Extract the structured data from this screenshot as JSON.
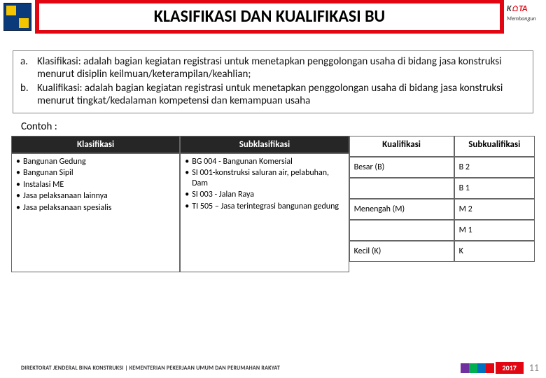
{
  "header": {
    "title": "KLASIFIKASI DAN KUALIFIKASI BU",
    "logo_right_top": "K",
    "logo_right_top2": "TA",
    "logo_right_sub": "Membangun"
  },
  "defs": {
    "a_label": "a.",
    "a_text": "Klasifikasi: adalah bagian kegiatan registrasi untuk menetapkan penggolongan usaha di bidang jasa konstruksi menurut disiplin keilmuan/keterampilan/keahlian;",
    "b_label": "b.",
    "b_text": "Kualifikasi: adalah bagian kegiatan registrasi untuk menetapkan penggolongan usaha di bidang jasa konstruksi menurut tingkat/kedalaman kompetensi dan kemampuan usaha"
  },
  "contoh_label": "Contoh :",
  "columns": {
    "klasifikasi_header": "Klasifikasi",
    "subklasifikasi_header": "Subklasifikasi",
    "kualifikasi_header": "Kualifikasi",
    "subkualifikasi_header": "Subkualifikasi"
  },
  "klasifikasi_items": [
    "Bangunan Gedung",
    "Bangunan Sipil",
    "Instalasi ME",
    "Jasa pelaksanaan lainnya",
    "Jasa pelaksanaan spesialis"
  ],
  "subklasifikasi_items": [
    "BG 004 - Bangunan Komersial",
    "SI 001-konstruksi saluran air, pelabuhan, Dam",
    "SI 003 - Jalan Raya",
    "TI 505 – Jasa terintegrasi bangunan gedung"
  ],
  "kualifikasi_rows": [
    {
      "k": "Besar (B)",
      "s": "B 2"
    },
    {
      "k": "",
      "s": "B 1"
    },
    {
      "k": "Menengah (M)",
      "s": "M 2"
    },
    {
      "k": "",
      "s": "M 1"
    },
    {
      "k": "Kecil (K)",
      "s": "K"
    }
  ],
  "footer": {
    "text": "DIREKTORAT JENDERAL BINA KONSTRUKSI | KEMENTERIAN PEKERJAAN UMUM DAN PERUMAHAN RAKYAT",
    "year": "2017",
    "page": "11",
    "bar_colors": [
      "#7030a0",
      "#00b050",
      "#0070c0",
      "#e20613"
    ]
  },
  "colors": {
    "brand_red": "#e20613",
    "dark_header": "#262626"
  },
  "logo_left": {
    "bg": "#0a3a7a",
    "yellow": "#f5c400"
  }
}
